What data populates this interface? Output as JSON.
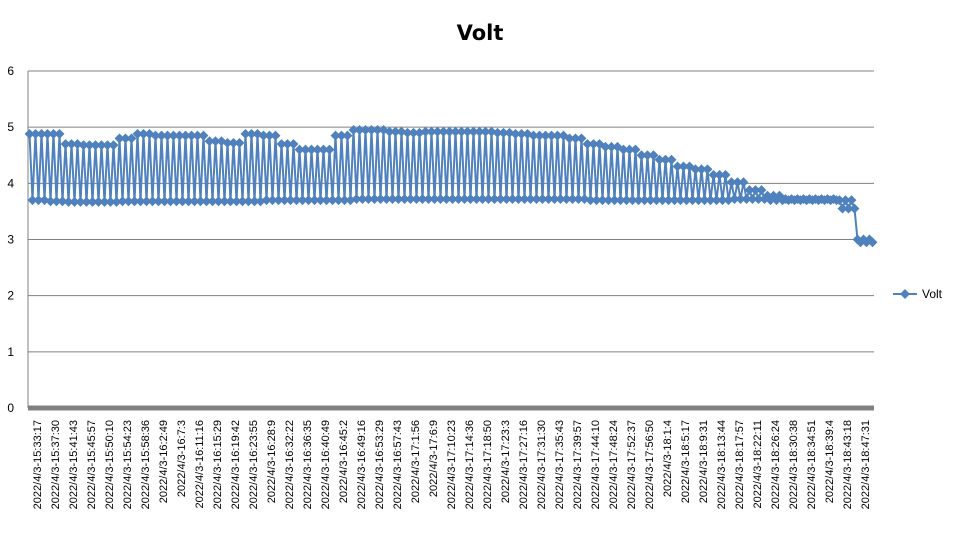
{
  "chart_data": {
    "type": "line",
    "title": "Volt",
    "xlabel": "",
    "ylabel": "",
    "ylim": [
      0,
      6
    ],
    "yticks": [
      0,
      1,
      2,
      3,
      4,
      5,
      6
    ],
    "grid": true,
    "legend": {
      "position": "right",
      "entries": [
        "Volt"
      ]
    },
    "series_color": "#4f81bd",
    "axis_color": "#808080",
    "categories": [
      "2022/4/3-15:33:17",
      "2022/4/3-15:37:30",
      "2022/4/3-15:41:43",
      "2022/4/3-15:45:57",
      "2022/4/3-15:50:10",
      "2022/4/3-15:54:23",
      "2022/4/3-15:58:36",
      "2022/4/3-16:2:49",
      "2022/4/3-16:7:3",
      "2022/4/3-16:11:16",
      "2022/4/3-16:15:29",
      "2022/4/3-16:19:42",
      "2022/4/3-16:23:55",
      "2022/4/3-16:28:9",
      "2022/4/3-16:32:22",
      "2022/4/3-16:36:35",
      "2022/4/3-16:40:49",
      "2022/4/3-16:45:2",
      "2022/4/3-16:49:16",
      "2022/4/3-16:53:29",
      "2022/4/3-16:57:43",
      "2022/4/3-17:1:56",
      "2022/4/3-17:6:9",
      "2022/4/3-17:10:23",
      "2022/4/3-17:14:36",
      "2022/4/3-17:18:50",
      "2022/4/3-17:23:3",
      "2022/4/3-17:27:16",
      "2022/4/3-17:31:30",
      "2022/4/3-17:35:43",
      "2022/4/3-17:39:57",
      "2022/4/3-17:44:10",
      "2022/4/3-17:48:24",
      "2022/4/3-17:52:37",
      "2022/4/3-17:56:50",
      "2022/4/3-18:1:4",
      "2022/4/3-18:5:17",
      "2022/4/3-18:9:31",
      "2022/4/3-18:13:44",
      "2022/4/3-18:17:57",
      "2022/4/3-18:22:11",
      "2022/4/3-18:26:24",
      "2022/4/3-18:30:38",
      "2022/4/3-18:34:51",
      "2022/4/3-18:39:4",
      "2022/4/3-18:43:18",
      "2022/4/3-18:47:31"
    ],
    "series": [
      {
        "name": "Volt",
        "min": [
          3.7,
          3.68,
          3.67,
          3.67,
          3.67,
          3.68,
          3.68,
          3.68,
          3.68,
          3.68,
          3.68,
          3.68,
          3.68,
          3.7,
          3.7,
          3.7,
          3.7,
          3.7,
          3.72,
          3.72,
          3.72,
          3.72,
          3.72,
          3.72,
          3.72,
          3.72,
          3.72,
          3.72,
          3.72,
          3.72,
          3.72,
          3.7,
          3.7,
          3.7,
          3.7,
          3.7,
          3.7,
          3.7,
          3.7,
          3.72,
          3.72,
          3.7,
          3.7,
          3.7,
          3.7,
          3.55,
          2.95
        ],
        "max": [
          4.88,
          4.88,
          4.7,
          4.68,
          4.68,
          4.8,
          4.88,
          4.85,
          4.85,
          4.85,
          4.75,
          4.72,
          4.88,
          4.85,
          4.7,
          4.6,
          4.6,
          4.85,
          4.95,
          4.95,
          4.92,
          4.9,
          4.92,
          4.92,
          4.92,
          4.92,
          4.9,
          4.88,
          4.85,
          4.85,
          4.8,
          4.7,
          4.65,
          4.6,
          4.5,
          4.42,
          4.3,
          4.25,
          4.15,
          4.02,
          3.88,
          3.78,
          3.72,
          3.72,
          3.72,
          3.7,
          3.0
        ]
      }
    ]
  }
}
